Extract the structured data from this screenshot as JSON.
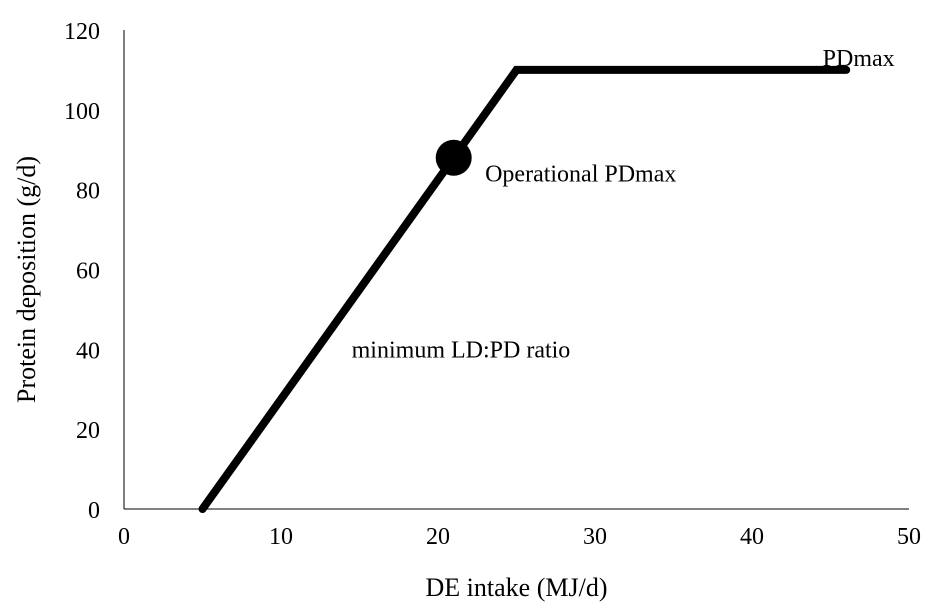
{
  "chart_data": {
    "type": "line",
    "title": "",
    "xlabel": "DE intake (MJ/d)",
    "ylabel": "Protein deposition (g/d)",
    "xlim": [
      0,
      50
    ],
    "ylim": [
      0,
      120
    ],
    "x_ticks": [
      0,
      10,
      20,
      30,
      40,
      50
    ],
    "y_ticks": [
      0,
      20,
      40,
      60,
      80,
      100,
      120
    ],
    "grid": false,
    "legend": "none",
    "series": [
      {
        "x": [
          5,
          25,
          46
        ],
        "y": [
          0,
          110,
          110
        ],
        "color": "#000000"
      }
    ],
    "points": [
      {
        "x": 21,
        "y": 88
      }
    ],
    "annotations": [
      {
        "text": "PDmax",
        "x": 44.5,
        "y": 113
      },
      {
        "text": "Operational PDmax",
        "x": 23,
        "y": 84
      },
      {
        "text": "minimum LD:PD ratio",
        "x": 14.5,
        "y": 40
      }
    ]
  }
}
